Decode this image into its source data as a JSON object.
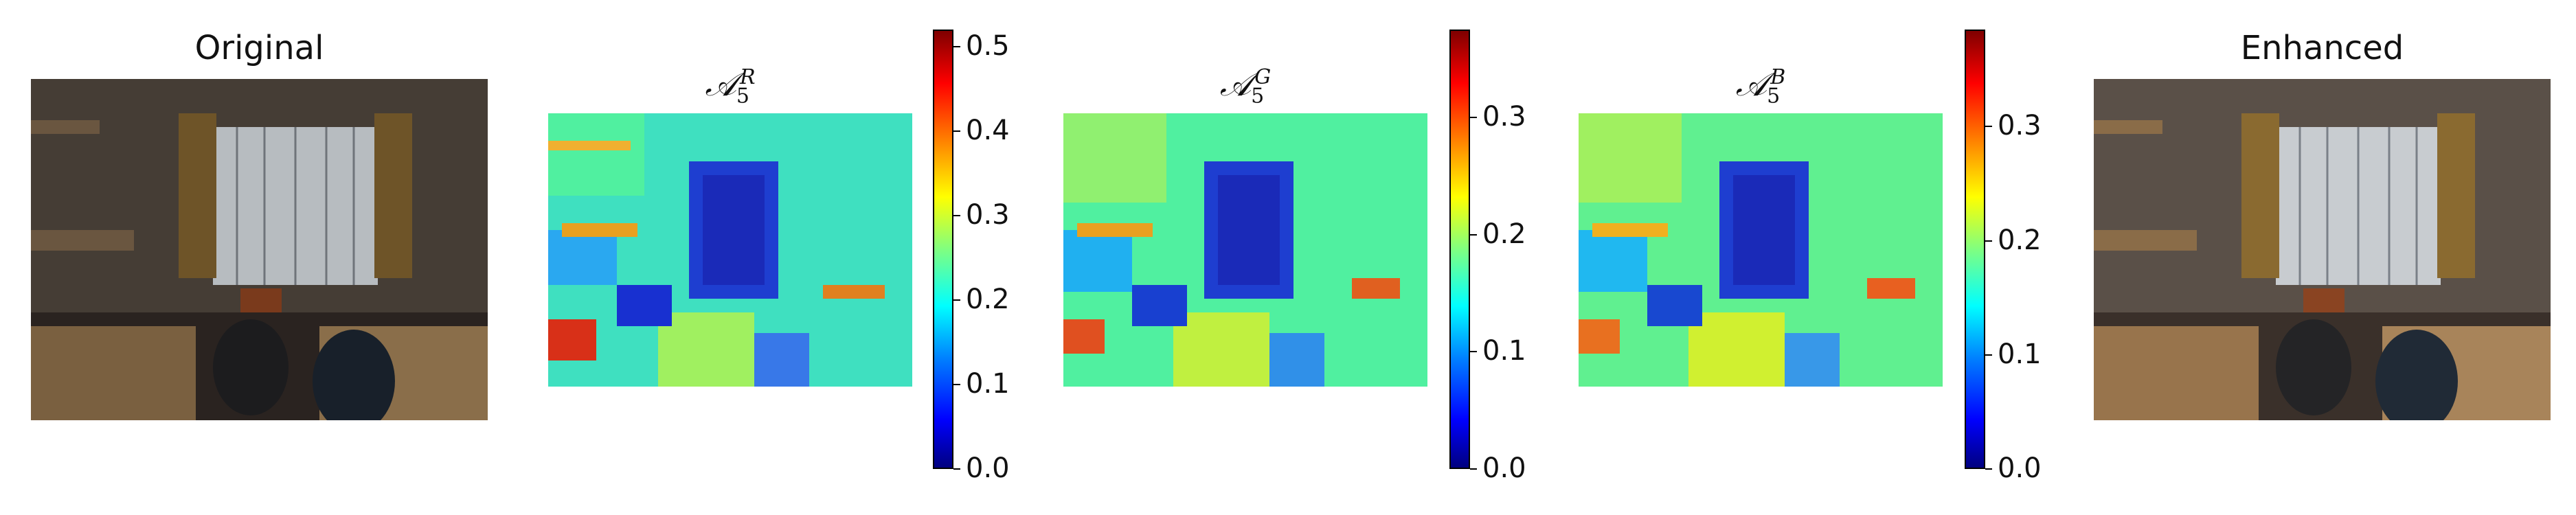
{
  "titles": {
    "original": "Original",
    "enhanced": "Enhanced",
    "map_r": {
      "symbol": "𝒜",
      "sub": "5",
      "sup": "R"
    },
    "map_g": {
      "symbol": "𝒜",
      "sub": "5",
      "sup": "G"
    },
    "map_b": {
      "symbol": "𝒜",
      "sub": "5",
      "sup": "B"
    }
  },
  "colorbars": {
    "r": {
      "ticks": [
        "0.0",
        "0.1",
        "0.2",
        "0.3",
        "0.4",
        "0.5"
      ],
      "max": 0.52
    },
    "g": {
      "ticks": [
        "0.0",
        "0.1",
        "0.2",
        "0.3"
      ],
      "max": 0.375
    },
    "b": {
      "ticks": [
        "0.0",
        "0.1",
        "0.2",
        "0.3"
      ],
      "max": 0.385
    }
  },
  "colors": {
    "jet": [
      "#00007f",
      "#0000ff",
      "#0080ff",
      "#00ffff",
      "#80ff80",
      "#ffff00",
      "#ff8000",
      "#ff0000",
      "#7f0000"
    ]
  }
}
